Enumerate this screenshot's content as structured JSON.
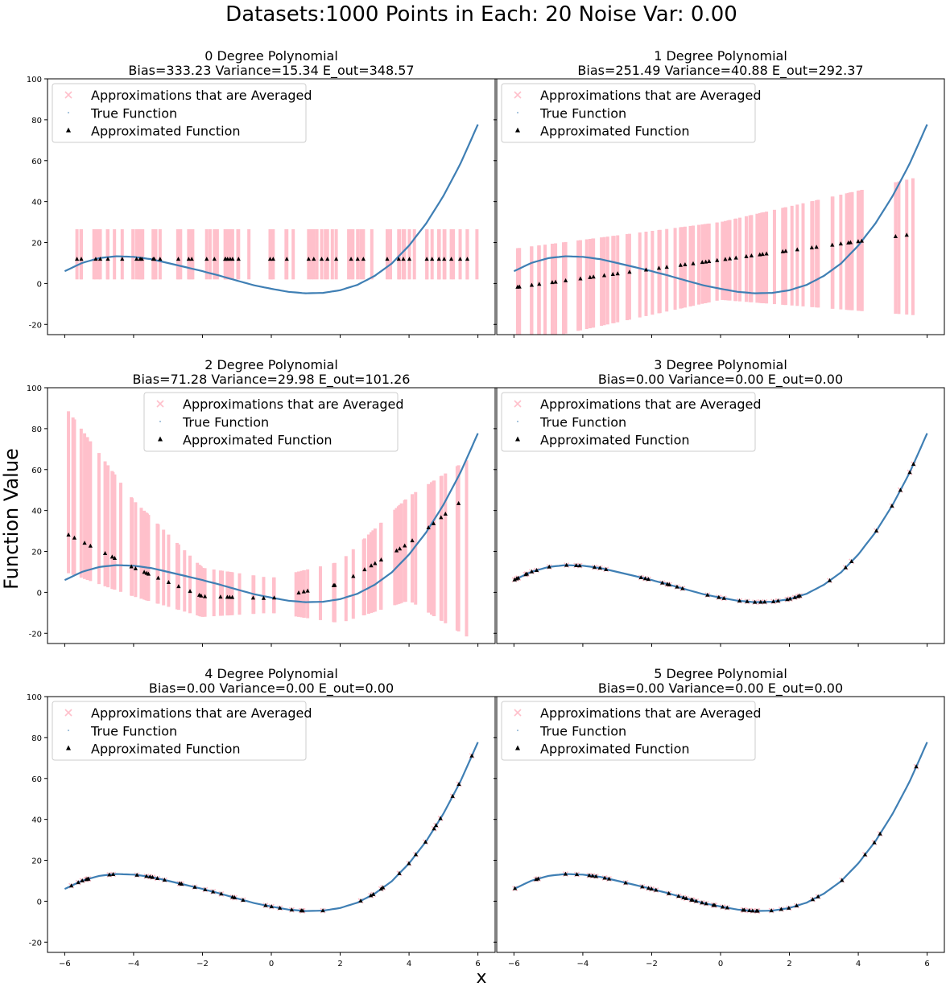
{
  "figure": {
    "suptitle": "Datasets:1000    Points in Each: 20     Noise Var: 0.00",
    "xlabel": "x",
    "ylabel": "Function Value"
  },
  "colors": {
    "true_function": "#3f7fb4",
    "approximations": "#ffc0cb",
    "approximated_function": "#000000"
  },
  "chart_data": [
    {
      "type": "scatter",
      "title": "0 Degree Polynomial",
      "subtitle": "Bias=333.23   Variance=15.34   E_out=348.57",
      "degree": 0,
      "legend": [
        "Approximations that are Averaged",
        "True Function",
        "Approximated Function"
      ],
      "legend_location": "upper left",
      "xlim": [
        -6.5,
        6.5
      ],
      "ylim": [
        -25,
        100
      ],
      "xticks": [
        -6,
        -4,
        -2,
        0,
        2,
        4,
        6
      ],
      "yticks": [
        -20,
        0,
        20,
        40,
        60,
        80,
        100
      ],
      "approx_mean_at_x": [
        [
          -6,
          11.9
        ],
        [
          0,
          11.9
        ],
        [
          6,
          11.9
        ]
      ],
      "approx_band_at_x": [
        [
          -6,
          2,
          26.5
        ],
        [
          0,
          2,
          26.5
        ],
        [
          6,
          2,
          26.5
        ]
      ]
    },
    {
      "type": "scatter",
      "title": "1 Degree Polynomial",
      "subtitle": "Bias=251.49   Variance=40.88   E_out=292.37",
      "degree": 1,
      "legend": [
        "Approximations that are Averaged",
        "True Function",
        "Approximated Function"
      ],
      "legend_location": "upper left",
      "xlim": [
        -6.5,
        6.5
      ],
      "ylim": [
        -25,
        100
      ],
      "xticks": [
        -6,
        -4,
        -2,
        0,
        2,
        4,
        6
      ],
      "yticks": [
        -20,
        0,
        20,
        40,
        60,
        80,
        100
      ],
      "approx_mean_at_x": [
        [
          -6,
          -2
        ],
        [
          0,
          11.5
        ],
        [
          6,
          25
        ]
      ],
      "approx_band_at_x": [
        [
          -6,
          -30,
          17
        ],
        [
          0,
          -8,
          30
        ],
        [
          6,
          -16,
          53
        ]
      ]
    },
    {
      "type": "scatter",
      "title": "2 Degree Polynomial",
      "subtitle": "Bias=71.28   Variance=29.98   E_out=101.26",
      "degree": 2,
      "legend": [
        "Approximations that are Averaged",
        "True Function",
        "Approximated Function"
      ],
      "legend_location": "upper center",
      "xlim": [
        -6.5,
        6.5
      ],
      "ylim": [
        -25,
        100
      ],
      "xticks": [
        -6,
        -4,
        -2,
        0,
        2,
        4,
        6
      ],
      "yticks": [
        -20,
        0,
        20,
        40,
        60,
        80,
        100
      ],
      "approx_mean_at_x": [
        [
          -6,
          29
        ],
        [
          -4,
          12
        ],
        [
          -2,
          -2
        ],
        [
          0,
          -3
        ],
        [
          2,
          4
        ],
        [
          4,
          24
        ],
        [
          6,
          51
        ]
      ],
      "approx_band_at_x": [
        [
          -6,
          10,
          91
        ],
        [
          -4,
          -2,
          45
        ],
        [
          -2,
          -12,
          12
        ],
        [
          0,
          -10,
          7
        ],
        [
          2,
          -15,
          15
        ],
        [
          4,
          -4,
          47
        ],
        [
          6,
          -25,
          68
        ]
      ]
    },
    {
      "type": "scatter",
      "title": "3 Degree Polynomial",
      "subtitle": "Bias=0.00   Variance=0.00   E_out=0.00",
      "degree": 3,
      "legend": [
        "Approximations that are Averaged",
        "True Function",
        "Approximated Function"
      ],
      "legend_location": "upper left",
      "xlim": [
        -6.5,
        6.5
      ],
      "ylim": [
        -25,
        100
      ],
      "xticks": [
        -6,
        -4,
        -2,
        0,
        2,
        4,
        6
      ],
      "yticks": [
        -20,
        0,
        20,
        40,
        60,
        80,
        100
      ]
    },
    {
      "type": "scatter",
      "title": "4 Degree Polynomial",
      "subtitle": "Bias=0.00   Variance=0.00   E_out=0.00",
      "degree": 4,
      "legend": [
        "Approximations that are Averaged",
        "True Function",
        "Approximated Function"
      ],
      "legend_location": "upper left",
      "xlim": [
        -6.5,
        6.5
      ],
      "ylim": [
        -25,
        100
      ],
      "xticks": [
        -6,
        -4,
        -2,
        0,
        2,
        4,
        6
      ],
      "yticks": [
        -20,
        0,
        20,
        40,
        60,
        80,
        100
      ]
    },
    {
      "type": "scatter",
      "title": "5 Degree Polynomial",
      "subtitle": "Bias=0.00   Variance=0.00   E_out=0.00",
      "degree": 5,
      "legend": [
        "Approximations that are Averaged",
        "True Function",
        "Approximated Function"
      ],
      "legend_location": "upper left",
      "xlim": [
        -6.5,
        6.5
      ],
      "ylim": [
        -25,
        100
      ],
      "xticks": [
        -6,
        -4,
        -2,
        0,
        2,
        4,
        6
      ],
      "yticks": [
        -20,
        0,
        20,
        40,
        60,
        80,
        100
      ]
    }
  ],
  "true_function": {
    "x": [
      -6,
      -5.5,
      -5,
      -4.5,
      -4,
      -3.5,
      -3,
      -2.5,
      -2,
      -1.5,
      -1,
      -0.5,
      0,
      0.5,
      1,
      1.5,
      2,
      2.5,
      3,
      3.5,
      4,
      4.5,
      5,
      5.5,
      6
    ],
    "y": [
      6,
      10,
      12.4,
      13.3,
      13,
      11.9,
      10,
      8,
      6,
      3.8,
      1.4,
      -0.9,
      -2.6,
      -4.1,
      -4.8,
      -4.6,
      -3.3,
      -0.7,
      3.7,
      9.8,
      18.5,
      29.4,
      42.8,
      58.8,
      77.7
    ]
  }
}
